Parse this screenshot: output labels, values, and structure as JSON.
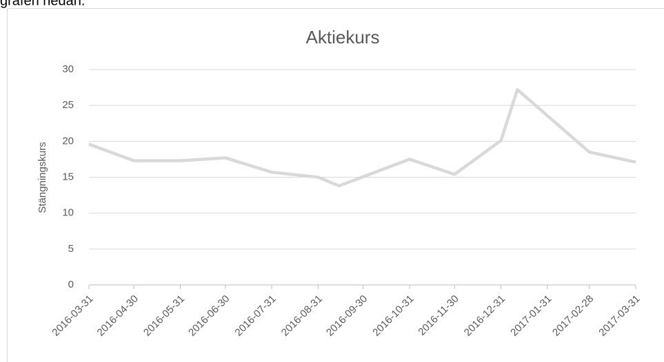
{
  "intro_text": "grafen nedan.",
  "chart_data": {
    "type": "line",
    "title": "Aktiekurs",
    "y_label": "Stängningskurs",
    "x": [
      "2016-03-31",
      "2016-04-30",
      "2016-05-31",
      "2016-06-30",
      "2016-07-31",
      "2016-08-31",
      "2016-09-14",
      "2016-10-31",
      "2016-11-30",
      "2016-12-31",
      "2017-01-11",
      "2017-02-28",
      "2017-03-31"
    ],
    "series": [
      {
        "name": "Stängningskurs",
        "color": "#d9d9d9",
        "values": [
          19.6,
          17.3,
          17.3,
          17.7,
          15.7,
          15.0,
          13.8,
          17.5,
          15.4,
          20.1,
          27.2,
          18.5,
          17.1
        ]
      }
    ],
    "xlim": [
      "2016-03-31",
      "2017-03-31"
    ],
    "xticks": [
      "2016-03-31",
      "2016-04-30",
      "2016-05-31",
      "2016-06-30",
      "2016-07-31",
      "2016-08-31",
      "2016-09-30",
      "2016-10-31",
      "2016-11-30",
      "2016-12-31",
      "2017-01-31",
      "2017-02-28",
      "2017-03-31"
    ],
    "ylim": [
      0,
      30
    ],
    "yticks": [
      0,
      5,
      10,
      15,
      20,
      25,
      30
    ],
    "grid": true
  }
}
